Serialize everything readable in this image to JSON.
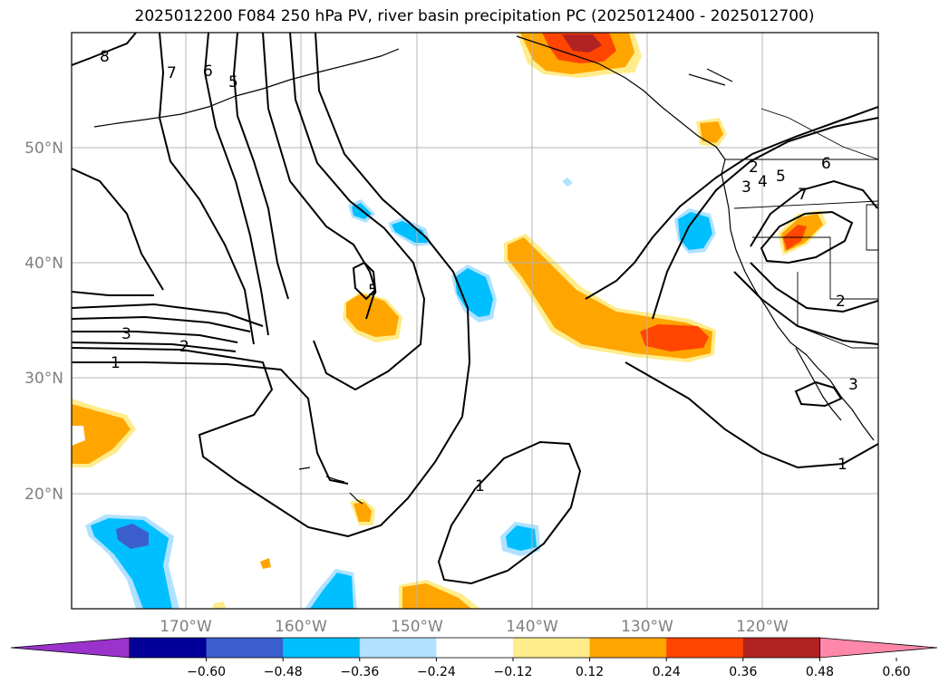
{
  "title": "2025012200 F084 250 hPa PV, river basin precipitation PC (2025012400 - 2025012700)",
  "lat_labels": [
    "50°N",
    "40°N",
    "30°N",
    "20°N"
  ],
  "lon_labels": [
    "170°W",
    "160°W",
    "150°W",
    "140°W",
    "130°W",
    "120°W"
  ],
  "contour_labels": [
    "8",
    "7",
    "6",
    "5",
    "3",
    "2",
    "1",
    "5",
    "1",
    "2",
    "3",
    "4",
    "5",
    "6",
    "7",
    "2",
    "3",
    "1"
  ],
  "colorbar": {
    "colors": [
      "#9933cc",
      "#000099",
      "#3a5fcd",
      "#00bfff",
      "#b0e2ff",
      "#ffffff",
      "#ffec8b",
      "#ffa500",
      "#ff4500",
      "#b22222",
      "#ff88aa"
    ],
    "tick_labels": [
      "−0.60",
      "−0.48",
      "−0.36",
      "−0.24",
      "−0.12",
      "0.12",
      "0.24",
      "0.36",
      "0.48",
      "0.60"
    ]
  },
  "colors": {
    "light_orange": "#ffec8b",
    "orange": "#ffa500",
    "red_orange": "#ff4500",
    "dark_red": "#b22222",
    "light_blue": "#b0e2ff",
    "blue": "#00bfff",
    "mid_blue": "#3a5fcd"
  }
}
